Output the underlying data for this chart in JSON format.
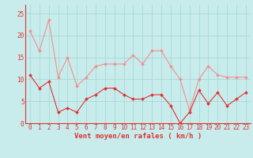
{
  "hours": [
    0,
    1,
    2,
    3,
    4,
    5,
    6,
    7,
    8,
    9,
    10,
    11,
    12,
    13,
    14,
    15,
    16,
    17,
    18,
    19,
    20,
    21,
    22,
    23
  ],
  "wind_avg": [
    11,
    8,
    9.5,
    2.5,
    3.5,
    2.5,
    5.5,
    6.5,
    8,
    8,
    6.5,
    5.5,
    5.5,
    6.5,
    6.5,
    4,
    0,
    2.5,
    7.5,
    4.5,
    7,
    4,
    5.5,
    7
  ],
  "wind_gust": [
    21,
    16.5,
    23.5,
    10.5,
    15,
    8.5,
    10.5,
    13,
    13.5,
    13.5,
    13.5,
    15.5,
    13.5,
    16.5,
    16.5,
    13,
    10,
    3,
    10,
    13,
    11,
    10.5,
    10.5,
    10.5
  ],
  "color_avg": "#e03030",
  "color_gust": "#f09090",
  "bg_color": "#c8ecec",
  "grid_color": "#a8d8d8",
  "xlabel": "Vent moyen/en rafales ( km/h )",
  "xlabel_color": "#e03030",
  "ylabel_values": [
    0,
    5,
    10,
    15,
    20,
    25
  ],
  "ylim": [
    0,
    27
  ],
  "xlim": [
    -0.5,
    23.5
  ],
  "tick_fontsize": 5.5,
  "xlabel_fontsize": 6.5
}
